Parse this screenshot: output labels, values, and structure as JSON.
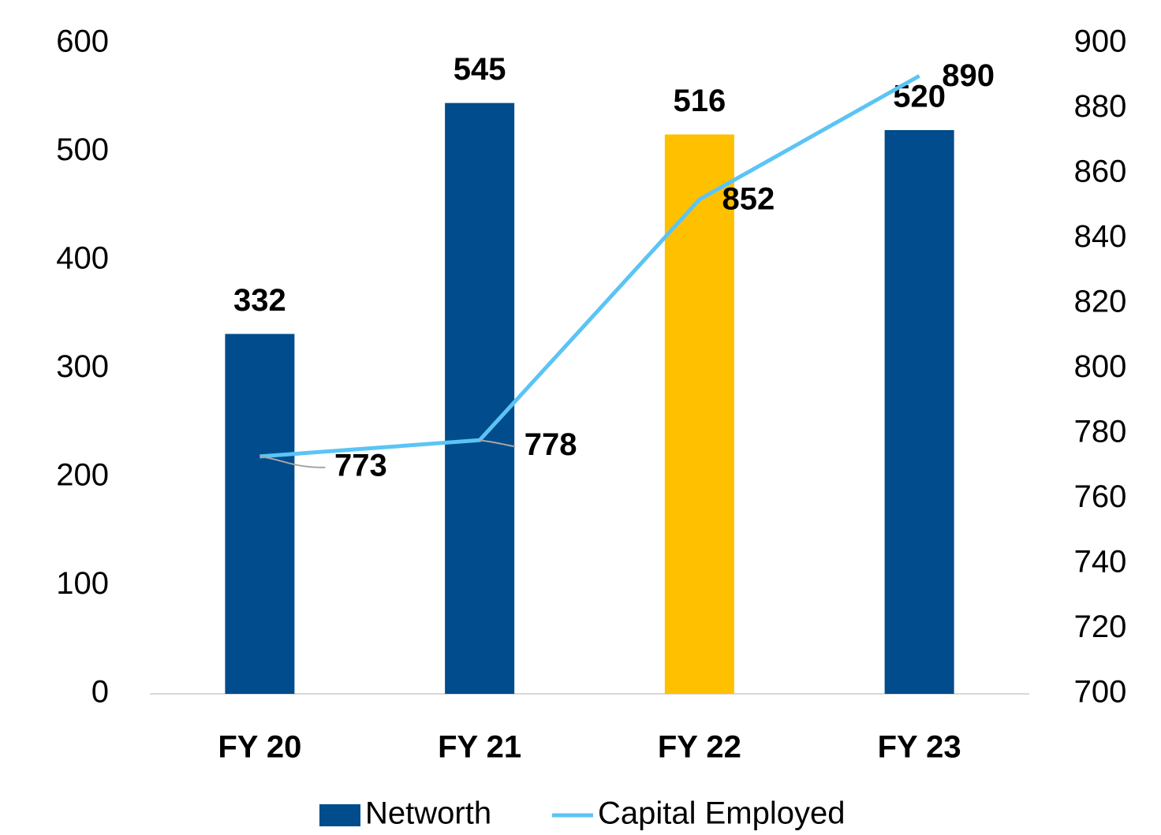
{
  "chart_data": {
    "type": "bar",
    "categories": [
      "FY 20",
      "FY 21",
      "FY 22",
      "FY 23"
    ],
    "series": [
      {
        "name": "Networth",
        "type": "bar",
        "color": "#004c8c",
        "colors": [
          "#004c8c",
          "#004c8c",
          "#ffc000",
          "#004c8c"
        ],
        "values": [
          332,
          545,
          516,
          520
        ]
      },
      {
        "name": "Capital Employed",
        "type": "line",
        "axis": "y2",
        "color": "#5bc4f5",
        "values": [
          773,
          778,
          852,
          890
        ]
      }
    ],
    "ylim": [
      0,
      600
    ],
    "yticks": [
      0,
      100,
      200,
      300,
      400,
      500,
      600
    ],
    "y2lim": [
      700,
      900
    ],
    "y2ticks": [
      700,
      720,
      740,
      760,
      780,
      800,
      820,
      840,
      860,
      880,
      900
    ],
    "legend": "bottom"
  }
}
